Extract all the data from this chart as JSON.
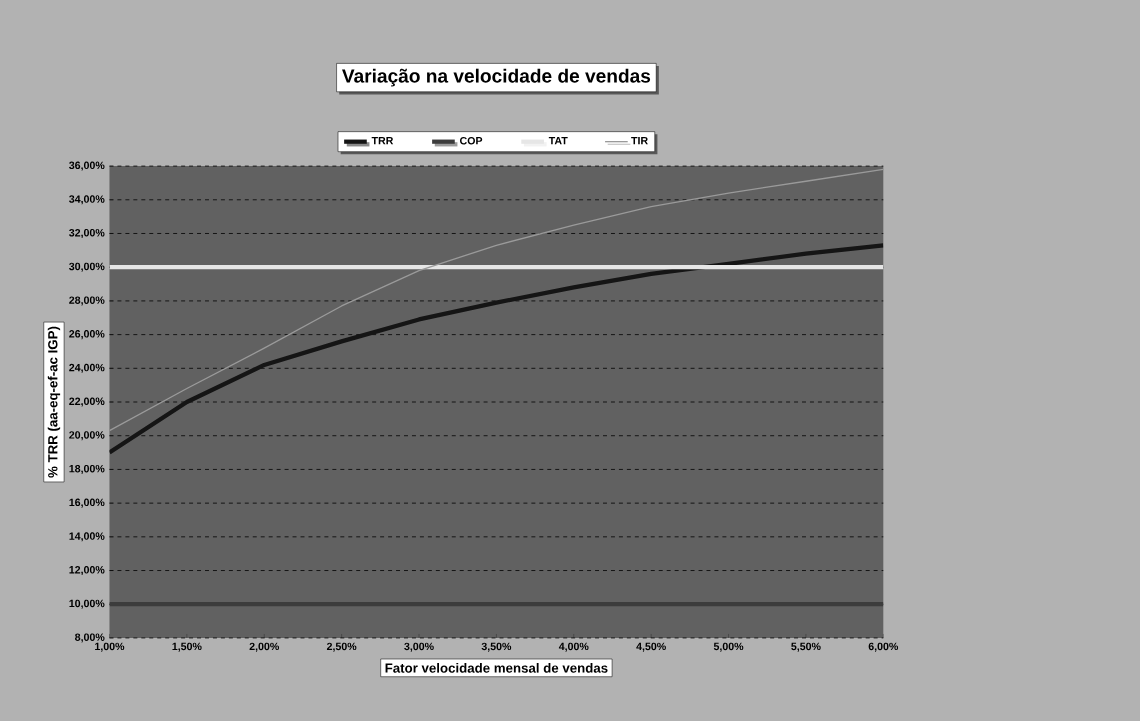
{
  "chart_data": {
    "type": "line",
    "title": "Variação na velocidade de vendas",
    "xlabel": "Fator velocidade mensal de vendas",
    "ylabel": "% TRR (aa-eq-ef-ac IGP)",
    "x": [
      1.0,
      1.5,
      2.0,
      2.5,
      3.0,
      3.5,
      4.0,
      4.5,
      5.0,
      5.5,
      6.0
    ],
    "series": [
      {
        "name": "TRR",
        "color": "#151515",
        "values": [
          19.0,
          22.0,
          24.2,
          25.6,
          26.9,
          27.9,
          28.8,
          29.6,
          30.2,
          30.8,
          31.3
        ]
      },
      {
        "name": "COP",
        "color": "#3c3c3c",
        "values": [
          10,
          10,
          10,
          10,
          10,
          10,
          10,
          10,
          10,
          10,
          10
        ]
      },
      {
        "name": "TAT",
        "color": "#e6e6e6",
        "values": [
          30,
          30,
          30,
          30,
          30,
          30,
          30,
          30,
          30,
          30,
          30
        ]
      },
      {
        "name": "TIR",
        "color": "#9a9a9a",
        "values": [
          20.3,
          22.8,
          25.2,
          27.7,
          29.8,
          31.3,
          32.5,
          33.6,
          34.4,
          35.1,
          35.8
        ]
      }
    ],
    "xlim": [
      1.0,
      6.0
    ],
    "xticks": [
      {
        "value": 1.0,
        "label": "1,00%"
      },
      {
        "value": 1.5,
        "label": "1,50%"
      },
      {
        "value": 2.0,
        "label": "2,00%"
      },
      {
        "value": 2.5,
        "label": "2,50%"
      },
      {
        "value": 3.0,
        "label": "3,00%"
      },
      {
        "value": 3.5,
        "label": "3,50%"
      },
      {
        "value": 4.0,
        "label": "4,00%"
      },
      {
        "value": 4.5,
        "label": "4,50%"
      },
      {
        "value": 5.0,
        "label": "5,00%"
      },
      {
        "value": 5.5,
        "label": "5,50%"
      },
      {
        "value": 6.0,
        "label": "6,00%"
      }
    ],
    "ylim": [
      8,
      36
    ],
    "yticks": [
      {
        "value": 8,
        "label": "8,00%"
      },
      {
        "value": 10,
        "label": "10,00%"
      },
      {
        "value": 12,
        "label": "12,00%"
      },
      {
        "value": 14,
        "label": "14,00%"
      },
      {
        "value": 16,
        "label": "16,00%"
      },
      {
        "value": 18,
        "label": "18,00%"
      },
      {
        "value": 20,
        "label": "20,00%"
      },
      {
        "value": 22,
        "label": "22,00%"
      },
      {
        "value": 24,
        "label": "24,00%"
      },
      {
        "value": 26,
        "label": "26,00%"
      },
      {
        "value": 28,
        "label": "28,00%"
      },
      {
        "value": 30,
        "label": "30,00%"
      },
      {
        "value": 32,
        "label": "32,00%"
      },
      {
        "value": 34,
        "label": "34,00%"
      },
      {
        "value": 36,
        "label": "36,00%"
      }
    ],
    "grid": "y",
    "legend": "top",
    "marker": "none",
    "line_style": "solid"
  }
}
